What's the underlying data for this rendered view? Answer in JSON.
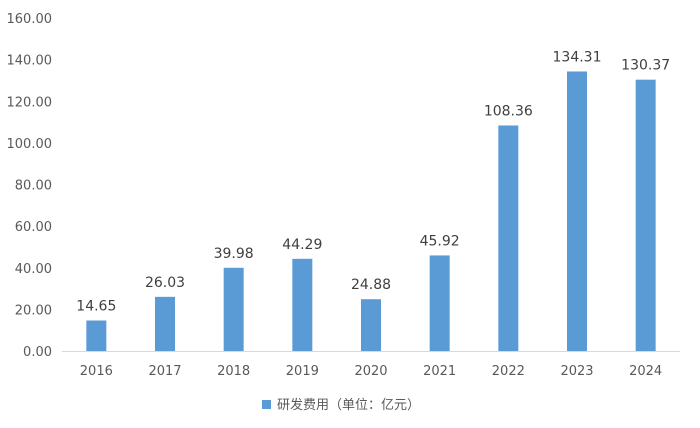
{
  "chart_data": {
    "type": "bar",
    "categories": [
      "2016",
      "2017",
      "2018",
      "2019",
      "2020",
      "2021",
      "2022",
      "2023",
      "2024"
    ],
    "series": [
      {
        "name": "研发费用（单位：亿元）",
        "values": [
          14.65,
          26.03,
          39.98,
          44.29,
          24.88,
          45.92,
          108.36,
          134.31,
          130.37
        ],
        "color": "#5b9bd5"
      }
    ],
    "data_labels": [
      "14.65",
      "26.03",
      "39.98",
      "44.29",
      "24.88",
      "45.92",
      "108.36",
      "134.31",
      "130.37"
    ],
    "y_ticks": [
      "0.00",
      "20.00",
      "40.00",
      "60.00",
      "80.00",
      "100.00",
      "120.00",
      "140.00",
      "160.00"
    ],
    "ylim": [
      0,
      160
    ],
    "y_tick_step": 20,
    "title": "",
    "xlabel": "",
    "ylabel": "",
    "grid": false,
    "legend_position": "bottom"
  }
}
